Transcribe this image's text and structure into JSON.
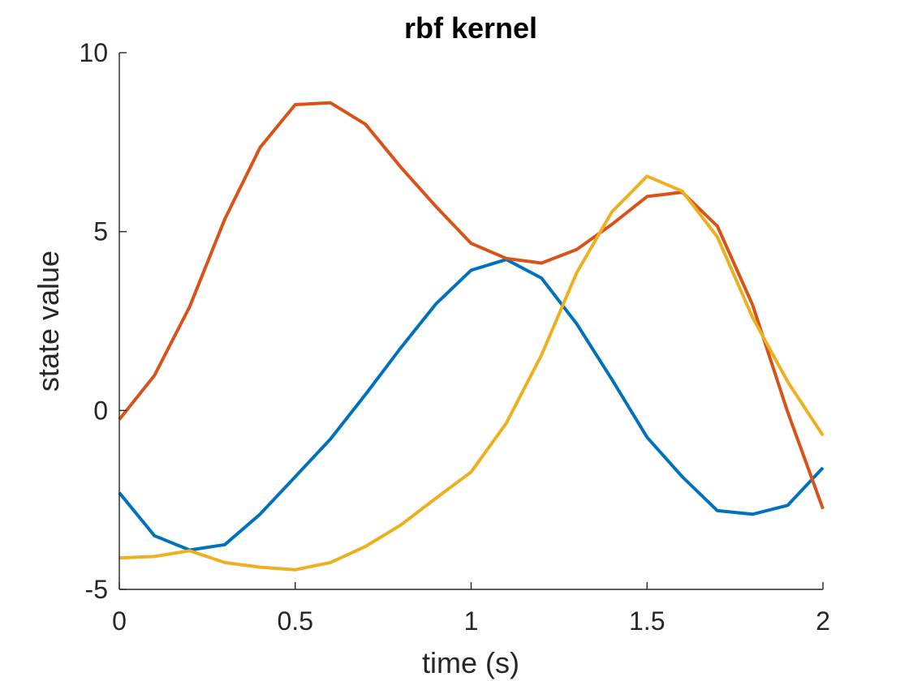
{
  "chart_data": {
    "type": "line",
    "title": "rbf kernel",
    "xlabel": "time (s)",
    "ylabel": "state value",
    "xlim": [
      0,
      2
    ],
    "ylim": [
      -5,
      10
    ],
    "xticks": [
      0,
      0.5,
      1,
      1.5,
      2
    ],
    "xtick_labels": [
      "0",
      "0.5",
      "1",
      "1.5",
      "2"
    ],
    "yticks": [
      -5,
      0,
      5,
      10
    ],
    "ytick_labels": [
      "-5",
      "0",
      "5",
      "10"
    ],
    "grid": false,
    "x": [
      0,
      0.1,
      0.2,
      0.3,
      0.4,
      0.5,
      0.6,
      0.7,
      0.8,
      0.9,
      1.0,
      1.1,
      1.2,
      1.3,
      1.4,
      1.5,
      1.6,
      1.7,
      1.8,
      1.9,
      2.0
    ],
    "series": [
      {
        "color": "#0072BD",
        "values": [
          -2.3,
          -3.5,
          -3.9,
          -3.75,
          -2.9,
          -1.85,
          -0.8,
          0.45,
          1.75,
          2.98,
          3.92,
          4.22,
          3.7,
          2.42,
          0.87,
          -0.75,
          -1.85,
          -2.8,
          -2.9,
          -2.65,
          -1.6
        ]
      },
      {
        "color": "#D95319",
        "values": [
          -0.25,
          0.98,
          2.9,
          5.35,
          7.35,
          8.55,
          8.6,
          8.0,
          6.8,
          5.7,
          4.67,
          4.25,
          4.12,
          4.5,
          5.2,
          5.98,
          6.1,
          5.15,
          2.95,
          -0.05,
          -2.75
        ]
      },
      {
        "color": "#EDB120",
        "values": [
          -4.12,
          -4.08,
          -3.92,
          -4.25,
          -4.38,
          -4.45,
          -4.25,
          -3.8,
          -3.2,
          -2.45,
          -1.72,
          -0.35,
          1.55,
          3.85,
          5.55,
          6.55,
          6.13,
          4.85,
          2.6,
          0.8,
          -0.7
        ]
      }
    ]
  }
}
